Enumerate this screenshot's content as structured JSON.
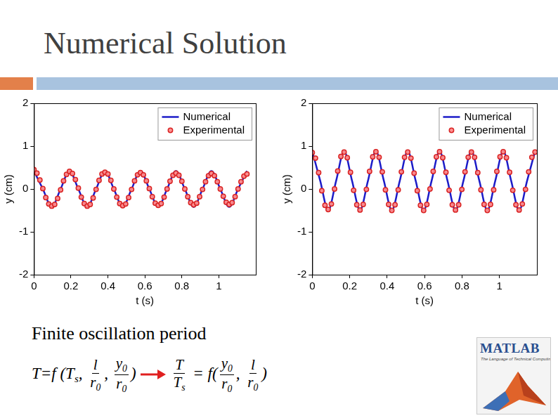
{
  "title": "Numerical Solution",
  "caption": "Finite oscillation period",
  "formula": {
    "left": [
      "T=f (T",
      {
        "sub": "s"
      },
      ", ",
      {
        "frac": [
          [
            "l"
          ],
          [
            "r",
            {
              "sub": "0"
            }
          ]
        ]
      },
      ", ",
      {
        "frac": [
          [
            "y",
            {
              "sub": "0"
            }
          ],
          [
            "r",
            {
              "sub": "0"
            }
          ]
        ]
      },
      ")"
    ],
    "right": [
      {
        "frac": [
          [
            "T"
          ],
          [
            "T",
            {
              "sub": "s"
            }
          ]
        ]
      },
      " = f(",
      {
        "frac": [
          [
            "y",
            {
              "sub": "0"
            }
          ],
          [
            "r",
            {
              "sub": "0"
            }
          ]
        ]
      },
      ", ",
      {
        "frac": [
          [
            "l"
          ],
          [
            "r",
            {
              "sub": "0"
            }
          ]
        ]
      },
      ")"
    ]
  },
  "logo": {
    "text": "MATLAB",
    "tagline": "The Language of Technical Computing"
  },
  "chart_data": [
    {
      "type": "line",
      "x_label": "t (s)",
      "y_label": "y (cm)",
      "xlim": [
        0,
        1.2
      ],
      "xticks": [
        0,
        0.2,
        0.4,
        0.6,
        0.8,
        1
      ],
      "ylim": [
        -2,
        2
      ],
      "yticks": [
        -2,
        -1,
        0,
        1,
        2
      ],
      "grid": false,
      "legend": "top right",
      "series": [
        {
          "name": "Numerical",
          "type": "line",
          "color": "#1c1cc8",
          "line_style": "solid",
          "x": [
            0,
            0.048,
            0.096,
            0.144,
            0.192,
            0.24,
            0.288,
            0.336,
            0.384,
            0.432,
            0.48,
            0.528,
            0.576,
            0.624,
            0.672,
            0.72,
            0.768,
            0.816,
            0.864,
            0.912,
            0.96,
            1.008,
            1.056,
            1.104,
            1.152
          ],
          "values": [
            0.42,
            0,
            -0.42,
            0,
            0.42,
            0,
            -0.42,
            0,
            0.42,
            0,
            -0.42,
            0,
            0.42,
            0,
            -0.42,
            0,
            0.42,
            0,
            -0.42,
            0,
            0.42,
            0,
            -0.42,
            0,
            0.42
          ]
        },
        {
          "name": "Experimental",
          "type": "scatter",
          "color": "#d92323",
          "marker": "circle",
          "x": [
            0,
            0.016,
            0.032,
            0.048,
            0.064,
            0.08,
            0.096,
            0.112,
            0.128,
            0.144,
            0.16,
            0.176,
            0.192,
            0.208,
            0.224,
            0.24,
            0.256,
            0.272,
            0.288,
            0.304,
            0.32,
            0.336,
            0.352,
            0.368,
            0.384,
            0.4,
            0.416,
            0.432,
            0.448,
            0.464,
            0.48,
            0.496,
            0.512,
            0.528,
            0.544,
            0.56,
            0.576,
            0.592,
            0.608,
            0.624,
            0.64,
            0.656,
            0.672,
            0.688,
            0.704,
            0.72,
            0.736,
            0.752,
            0.768,
            0.784,
            0.8,
            0.816,
            0.832,
            0.848,
            0.864,
            0.88,
            0.896,
            0.912,
            0.928,
            0.944,
            0.96,
            0.976,
            0.992,
            1.008,
            1.024,
            1.04,
            1.056,
            1.072,
            1.088,
            1.104,
            1.12,
            1.136,
            1.152
          ],
          "values": [
            0.45,
            0.37,
            0.21,
            0.01,
            -0.2,
            -0.35,
            -0.4,
            -0.36,
            -0.22,
            -0.02,
            0.19,
            0.34,
            0.41,
            0.36,
            0.22,
            0.02,
            -0.19,
            -0.34,
            -0.4,
            -0.36,
            -0.21,
            -0.01,
            0.2,
            0.35,
            0.39,
            0.35,
            0.2,
            0,
            -0.19,
            -0.34,
            -0.39,
            -0.35,
            -0.2,
            -0.01,
            0.19,
            0.33,
            0.38,
            0.33,
            0.19,
            0.01,
            -0.18,
            -0.33,
            -0.38,
            -0.34,
            -0.19,
            0,
            0.18,
            0.32,
            0.37,
            0.32,
            0.18,
            0,
            -0.18,
            -0.32,
            -0.37,
            -0.33,
            -0.18,
            -0.01,
            0.17,
            0.31,
            0.36,
            0.31,
            0.17,
            0,
            -0.17,
            -0.31,
            -0.36,
            -0.32,
            -0.18,
            0,
            0.17,
            0.3,
            0.35
          ]
        }
      ]
    },
    {
      "type": "line",
      "x_label": "t (s)",
      "y_label": "y (cm)",
      "xlim": [
        0,
        1.2
      ],
      "xticks": [
        0,
        0.2,
        0.4,
        0.6,
        0.8,
        1
      ],
      "ylim": [
        -2,
        2
      ],
      "yticks": [
        -2,
        -1,
        0,
        1,
        2
      ],
      "grid": false,
      "legend": "top right",
      "series": [
        {
          "name": "Numerical",
          "type": "line",
          "color": "#1c1cc8",
          "line_style": "solid",
          "x": [
            0,
            0.0425,
            0.085,
            0.1275,
            0.17,
            0.2125,
            0.255,
            0.2975,
            0.34,
            0.3825,
            0.425,
            0.4675,
            0.51,
            0.5525,
            0.595,
            0.6375,
            0.68,
            0.7225,
            0.765,
            0.8075,
            0.85,
            0.8925,
            0.935,
            0.9775,
            1.02,
            1.0625,
            1.105,
            1.1475,
            1.19
          ],
          "values": [
            0.88,
            0.19,
            -0.5,
            0.19,
            0.88,
            0.19,
            -0.5,
            0.19,
            0.88,
            0.19,
            -0.5,
            0.19,
            0.88,
            0.19,
            -0.5,
            0.19,
            0.88,
            0.19,
            -0.5,
            0.19,
            0.88,
            0.19,
            -0.5,
            0.19,
            0.88,
            0.19,
            -0.5,
            0.19,
            0.88
          ]
        },
        {
          "name": "Experimental",
          "type": "scatter",
          "color": "#d92323",
          "marker": "circle",
          "x": [
            0,
            0.017,
            0.034,
            0.051,
            0.068,
            0.085,
            0.102,
            0.119,
            0.136,
            0.153,
            0.17,
            0.187,
            0.204,
            0.221,
            0.238,
            0.255,
            0.272,
            0.289,
            0.306,
            0.323,
            0.34,
            0.357,
            0.374,
            0.391,
            0.408,
            0.425,
            0.442,
            0.459,
            0.476,
            0.493,
            0.51,
            0.527,
            0.544,
            0.561,
            0.578,
            0.595,
            0.612,
            0.629,
            0.646,
            0.663,
            0.68,
            0.697,
            0.714,
            0.731,
            0.748,
            0.765,
            0.782,
            0.799,
            0.816,
            0.833,
            0.85,
            0.867,
            0.884,
            0.901,
            0.918,
            0.935,
            0.952,
            0.969,
            0.986,
            1.003,
            1.02,
            1.037,
            1.054,
            1.071,
            1.088,
            1.105,
            1.122,
            1.139,
            1.156,
            1.173,
            1.19
          ],
          "values": [
            0.85,
            0.72,
            0.38,
            -0.04,
            -0.38,
            -0.48,
            -0.35,
            0,
            0.42,
            0.76,
            0.86,
            0.73,
            0.39,
            -0.03,
            -0.37,
            -0.49,
            -0.36,
            -0.01,
            0.41,
            0.75,
            0.87,
            0.74,
            0.4,
            -0.02,
            -0.36,
            -0.5,
            -0.37,
            -0.02,
            0.4,
            0.74,
            0.86,
            0.72,
            0.37,
            -0.04,
            -0.38,
            -0.5,
            -0.36,
            0,
            0.41,
            0.75,
            0.87,
            0.73,
            0.39,
            -0.03,
            -0.37,
            -0.49,
            -0.37,
            -0.01,
            0.4,
            0.74,
            0.86,
            0.74,
            0.38,
            -0.02,
            -0.36,
            -0.5,
            -0.36,
            -0.02,
            0.41,
            0.75,
            0.87,
            0.73,
            0.39,
            -0.03,
            -0.37,
            -0.49,
            -0.35,
            -0.01,
            0.4,
            0.74,
            0.86
          ]
        }
      ]
    }
  ]
}
